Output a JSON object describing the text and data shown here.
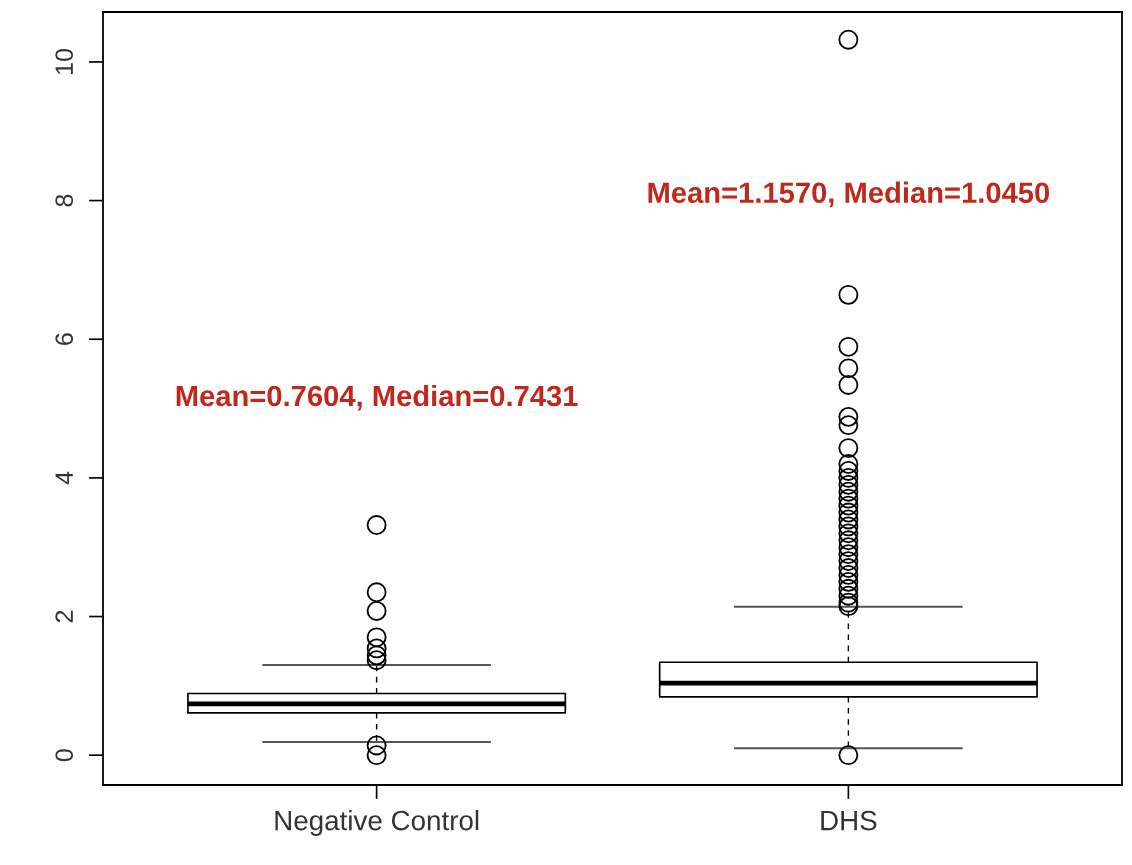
{
  "chart_data": {
    "type": "box",
    "categories": [
      "Negative Control",
      "DHS"
    ],
    "boxes": [
      {
        "low": 0.19,
        "q1": 0.61,
        "median": 0.74,
        "q3": 0.89,
        "high": 1.3,
        "outliers": [
          3.32,
          2.35,
          2.08,
          1.7,
          1.54,
          1.44,
          1.37,
          0.14,
          0
        ]
      },
      {
        "low": 0.1,
        "q1": 0.84,
        "median": 1.04,
        "q3": 1.34,
        "high": 2.14,
        "outliers": [
          10.32,
          6.64,
          5.89,
          5.58,
          5.34,
          4.88,
          4.76,
          4.43,
          4.2,
          4.1,
          4.0,
          3.9,
          3.8,
          3.7,
          3.6,
          3.5,
          3.4,
          3.3,
          3.2,
          3.1,
          3.0,
          2.9,
          2.8,
          2.7,
          2.6,
          2.5,
          2.4,
          2.3,
          2.2,
          2.15,
          0
        ]
      }
    ],
    "ylim": [
      -0.43,
      10.72
    ],
    "yticks": [
      0,
      2,
      4,
      6,
      8,
      10
    ],
    "grid": false,
    "annotations": [
      "Mean=0.7604, Median=0.7431",
      "Mean=1.1570, Median=1.0450"
    ]
  }
}
